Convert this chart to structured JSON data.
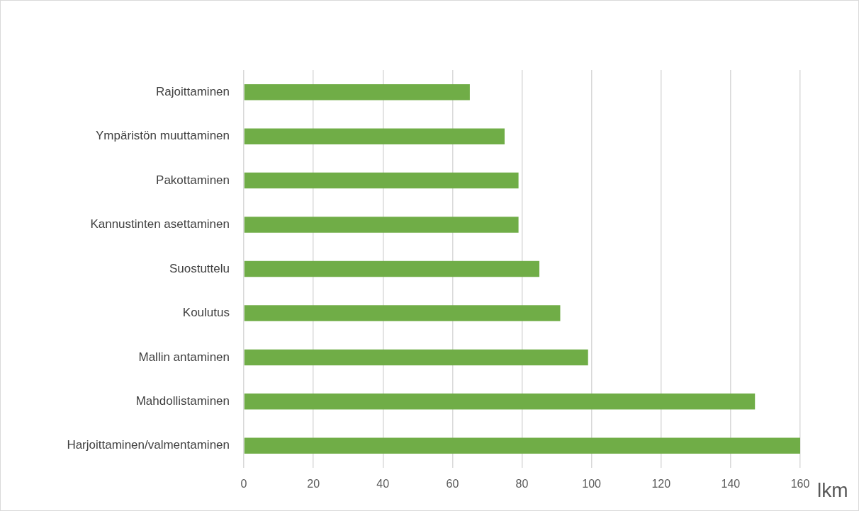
{
  "chart_data": {
    "type": "bar",
    "orientation": "horizontal",
    "xlabel": "lkm",
    "categories": [
      "Rajoittaminen",
      "Ympäristön muuttaminen",
      "Pakottaminen",
      "Kannustinten asettaminen",
      "Suostuttelu",
      "Koulutus",
      "Mallin antaminen",
      "Mahdollistaminen",
      "Harjoittaminen/valmentaminen"
    ],
    "values": [
      65,
      75,
      79,
      79,
      85,
      91,
      99,
      147,
      160
    ],
    "color": "#70ad47",
    "xlim": [
      0,
      160
    ],
    "xticks": [
      0,
      20,
      40,
      60,
      80,
      100,
      120,
      140,
      160
    ],
    "grid": "x",
    "legend": false
  }
}
